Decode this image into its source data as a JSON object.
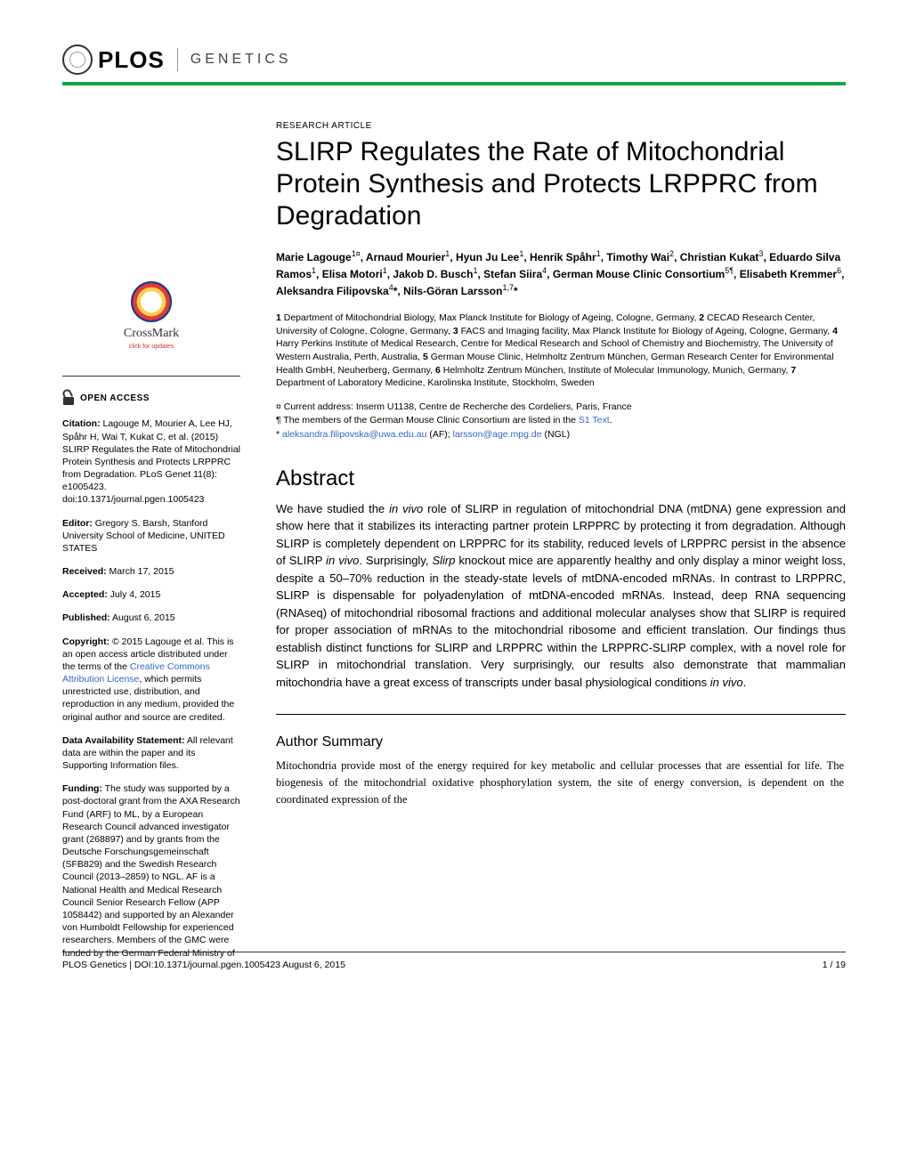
{
  "header": {
    "publisher": "PLOS",
    "journal": "GENETICS",
    "accent_color": "#15a349"
  },
  "crossmark": {
    "label": "CrossMark",
    "sublabel": "click for updates"
  },
  "open_access_label": "OPEN ACCESS",
  "sidebar": {
    "citation_label": "Citation:",
    "citation_text": " Lagouge M, Mourier A, Lee HJ, Spåhr H, Wai T, Kukat C, et al. (2015) SLIRP Regulates the Rate of Mitochondrial Protein Synthesis and Protects LRPPRC from Degradation. PLoS Genet 11(8): e1005423. doi:10.1371/journal.pgen.1005423",
    "editor_label": "Editor:",
    "editor_text": " Gregory S. Barsh, Stanford University School of Medicine, UNITED STATES",
    "received_label": "Received:",
    "received_text": " March 17, 2015",
    "accepted_label": "Accepted:",
    "accepted_text": " July 4, 2015",
    "published_label": "Published:",
    "published_text": " August 6, 2015",
    "copyright_label": "Copyright:",
    "copyright_text_1": " © 2015 Lagouge et al. This is an open access article distributed under the terms of the ",
    "copyright_link": "Creative Commons Attribution License",
    "copyright_text_2": ", which permits unrestricted use, distribution, and reproduction in any medium, provided the original author and source are credited.",
    "data_label": "Data Availability Statement:",
    "data_text": " All relevant data are within the paper and its Supporting Information files.",
    "funding_label": "Funding:",
    "funding_text": " The study was supported by a post-doctoral grant from the AXA Research Fund (ARF) to ML, by a European Research Council advanced investigator grant (268897) and by grants from the Deutsche Forschungsgemeinschaft (SFB829) and the Swedish Research Council (2013–2859) to NGL. AF is a National Health and Medical Research Council Senior Research Fellow (APP 1058442) and supported by an Alexander von Humboldt Fellowship for experienced researchers. Members of the GMC were funded by the German Federal Ministry of"
  },
  "article": {
    "type": "RESEARCH ARTICLE",
    "title": "SLIRP Regulates the Rate of Mitochondrial Protein Synthesis and Protects LRPPRC from Degradation",
    "affiliations": "1 Department of Mitochondrial Biology, Max Planck Institute for Biology of Ageing, Cologne, Germany, 2 CECAD Research Center, University of Cologne, Cologne, Germany, 3 FACS and Imaging facility, Max Planck Institute for Biology of Ageing, Cologne, Germany, 4 Harry Perkins Institute of Medical Research, Centre for Medical Research and School of Chemistry and Biochemistry, The University of Western Australia, Perth, Australia, 5 German Mouse Clinic, Helmholtz Zentrum München, German Research Center for Environmental Health GmbH, Neuherberg, Germany, 6 Helmholtz Zentrum München, Institute of Molecular Immunology, Munich, Germany, 7 Department of Laboratory Medicine, Karolinska Institute, Stockholm, Sweden",
    "note_currency": "¤ Current address: Inserm U1138, Centre de Recherche des Cordeliers, Paris, France",
    "note_pilcrow": "¶ The members of the German Mouse Clinic Consortium are listed in the ",
    "note_pilcrow_link": "S1 Text",
    "note_pilcrow_end": ".",
    "note_corr_prefix": "* ",
    "note_corr_email1": "aleksandra.filipovska@uwa.edu.au",
    "note_corr_mid": " (AF); ",
    "note_corr_email2": "larsson@age.mpg.de",
    "note_corr_end": " (NGL)",
    "abstract_heading": "Abstract",
    "summary_heading": "Author Summary",
    "summary_body": "Mitochondria provide most of the energy required for key metabolic and cellular processes that are essential for life. The biogenesis of the mitochondrial oxidative phosphorylation system, the site of energy conversion, is dependent on the coordinated expression of the"
  },
  "footer": {
    "left": "PLOS Genetics | DOI:10.1371/journal.pgen.1005423    August 6, 2015",
    "right": "1 / 19"
  }
}
